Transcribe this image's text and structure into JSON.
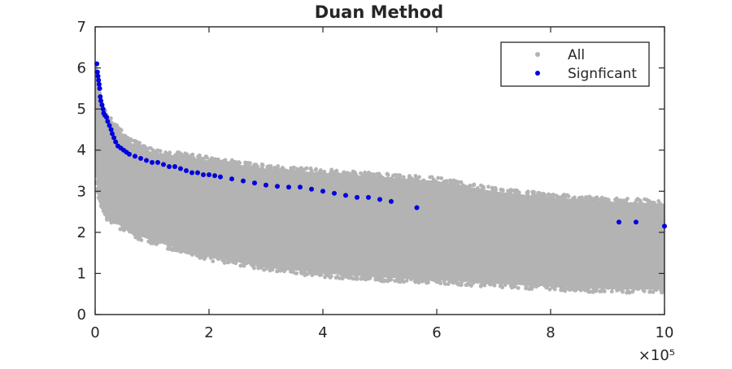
{
  "chart_data": {
    "type": "scatter",
    "title": "Duan Method",
    "xlabel": "",
    "ylabel": "",
    "xlim": [
      0,
      1000000
    ],
    "ylim": [
      0,
      7
    ],
    "x_exponent_label": "×10⁵",
    "x_tick_values": [
      0,
      200000,
      400000,
      600000,
      800000,
      1000000
    ],
    "x_tick_labels": [
      "0",
      "2",
      "4",
      "6",
      "8",
      "10"
    ],
    "y_tick_values": [
      0,
      1,
      2,
      3,
      4,
      5,
      6,
      7
    ],
    "y_tick_labels": [
      "0",
      "1",
      "2",
      "3",
      "4",
      "5",
      "6",
      "7"
    ],
    "grid": false,
    "legend_position": "top-right",
    "series": [
      {
        "name": "All",
        "color": "#b3b3b3",
        "band": {
          "x": [
            0,
            5000,
            10000,
            20000,
            40000,
            60000,
            100000,
            150000,
            200000,
            300000,
            400000,
            500000,
            600000,
            700000,
            800000,
            900000,
            1000000
          ],
          "upper": [
            6.1,
            5.6,
            5.2,
            4.8,
            4.5,
            4.2,
            3.95,
            3.85,
            3.75,
            3.55,
            3.45,
            3.35,
            3.25,
            3.0,
            2.85,
            2.75,
            2.7
          ],
          "lower": [
            3.5,
            3.0,
            2.7,
            2.4,
            2.2,
            2.0,
            1.8,
            1.6,
            1.4,
            1.15,
            1.0,
            0.9,
            0.85,
            0.75,
            0.68,
            0.62,
            0.6
          ]
        }
      },
      {
        "name": "Signficant",
        "color": "#0000e0",
        "points": [
          [
            3000,
            6.1
          ],
          [
            4000,
            5.9
          ],
          [
            5000,
            5.8
          ],
          [
            6000,
            5.7
          ],
          [
            7000,
            5.6
          ],
          [
            8000,
            5.5
          ],
          [
            9000,
            5.3
          ],
          [
            10000,
            5.2
          ],
          [
            12000,
            5.1
          ],
          [
            14000,
            5.0
          ],
          [
            15000,
            4.9
          ],
          [
            17000,
            4.85
          ],
          [
            20000,
            4.8
          ],
          [
            22000,
            4.7
          ],
          [
            25000,
            4.6
          ],
          [
            28000,
            4.5
          ],
          [
            30000,
            4.4
          ],
          [
            33000,
            4.3
          ],
          [
            36000,
            4.2
          ],
          [
            40000,
            4.1
          ],
          [
            45000,
            4.05
          ],
          [
            50000,
            4.0
          ],
          [
            55000,
            3.95
          ],
          [
            60000,
            3.9
          ],
          [
            70000,
            3.85
          ],
          [
            80000,
            3.8
          ],
          [
            90000,
            3.75
          ],
          [
            100000,
            3.7
          ],
          [
            110000,
            3.7
          ],
          [
            120000,
            3.65
          ],
          [
            130000,
            3.6
          ],
          [
            140000,
            3.6
          ],
          [
            150000,
            3.55
          ],
          [
            160000,
            3.5
          ],
          [
            170000,
            3.45
          ],
          [
            180000,
            3.45
          ],
          [
            190000,
            3.4
          ],
          [
            200000,
            3.4
          ],
          [
            210000,
            3.38
          ],
          [
            220000,
            3.35
          ],
          [
            240000,
            3.3
          ],
          [
            260000,
            3.25
          ],
          [
            280000,
            3.2
          ],
          [
            300000,
            3.15
          ],
          [
            320000,
            3.12
          ],
          [
            340000,
            3.1
          ],
          [
            360000,
            3.1
          ],
          [
            380000,
            3.05
          ],
          [
            400000,
            3.0
          ],
          [
            420000,
            2.95
          ],
          [
            440000,
            2.9
          ],
          [
            460000,
            2.85
          ],
          [
            480000,
            2.85
          ],
          [
            500000,
            2.8
          ],
          [
            520000,
            2.75
          ],
          [
            565000,
            2.6
          ],
          [
            920000,
            2.25
          ],
          [
            950000,
            2.25
          ],
          [
            1000000,
            2.15
          ]
        ]
      }
    ]
  }
}
